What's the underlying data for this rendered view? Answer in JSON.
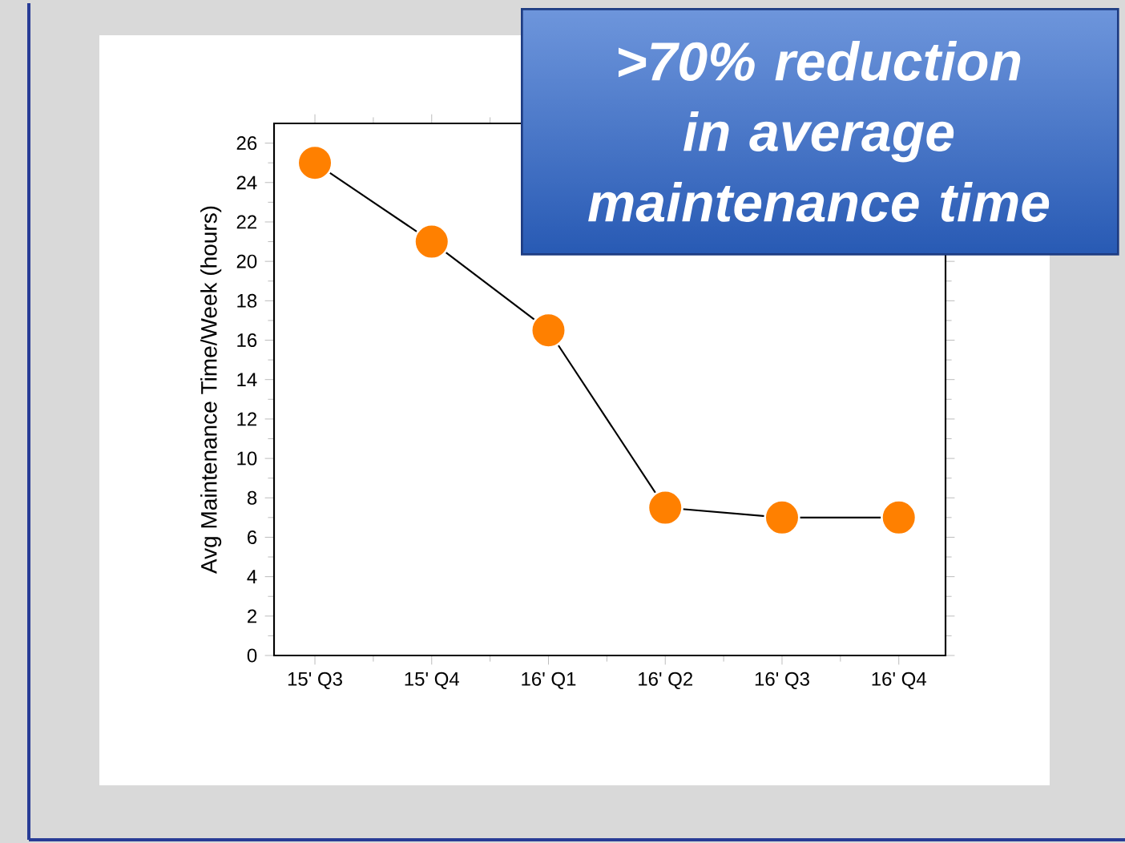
{
  "chart_data": {
    "type": "line",
    "categories": [
      "15' Q3",
      "15' Q4",
      "16' Q1",
      "16' Q2",
      "16' Q3",
      "16' Q4"
    ],
    "series": [
      {
        "color": "#ff8000",
        "values": [
          25,
          21,
          16.5,
          7.5,
          7,
          7
        ]
      }
    ],
    "ylabel": "Avg Maintenance Time/Week (hours)",
    "ylim": [
      0,
      27
    ],
    "yticks": [
      0,
      2,
      4,
      6,
      8,
      10,
      12,
      14,
      16,
      18,
      20,
      22,
      24,
      26
    ],
    "marker": "circle",
    "line_style": "solid",
    "grid": false,
    "annotations": [
      ">70% reduction in average maintenance time"
    ]
  }
}
